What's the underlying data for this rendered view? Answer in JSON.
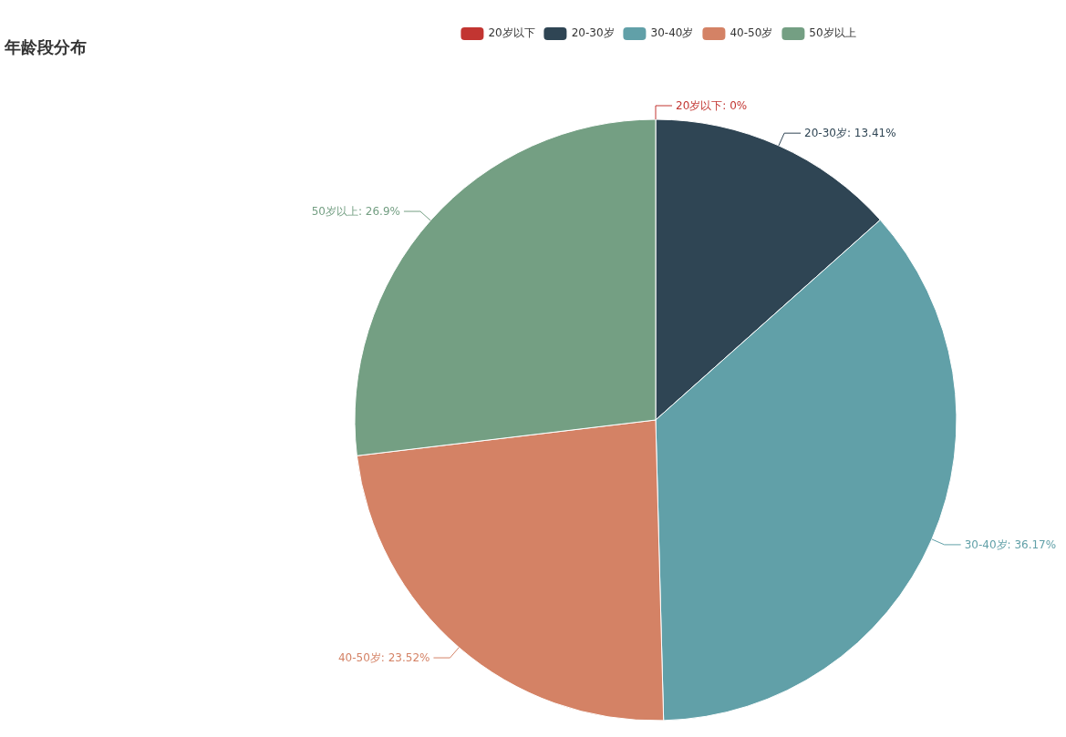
{
  "chart_data": {
    "type": "pie",
    "title": "年龄段分布",
    "categories": [
      "20岁以下",
      "20-30岁",
      "30-40岁",
      "40-50岁",
      "50岁以上"
    ],
    "values": [
      0,
      13.41,
      36.17,
      23.52,
      26.9
    ],
    "colors": [
      "#c23531",
      "#2f4554",
      "#61a0a8",
      "#d48265",
      "#749f83"
    ],
    "value_labels": [
      "20岁以下: 0%",
      "20-30岁: 13.41%",
      "30-40岁: 36.17%",
      "40-50岁: 23.52%",
      "50岁以上: 26.9%"
    ],
    "legend": "top"
  }
}
